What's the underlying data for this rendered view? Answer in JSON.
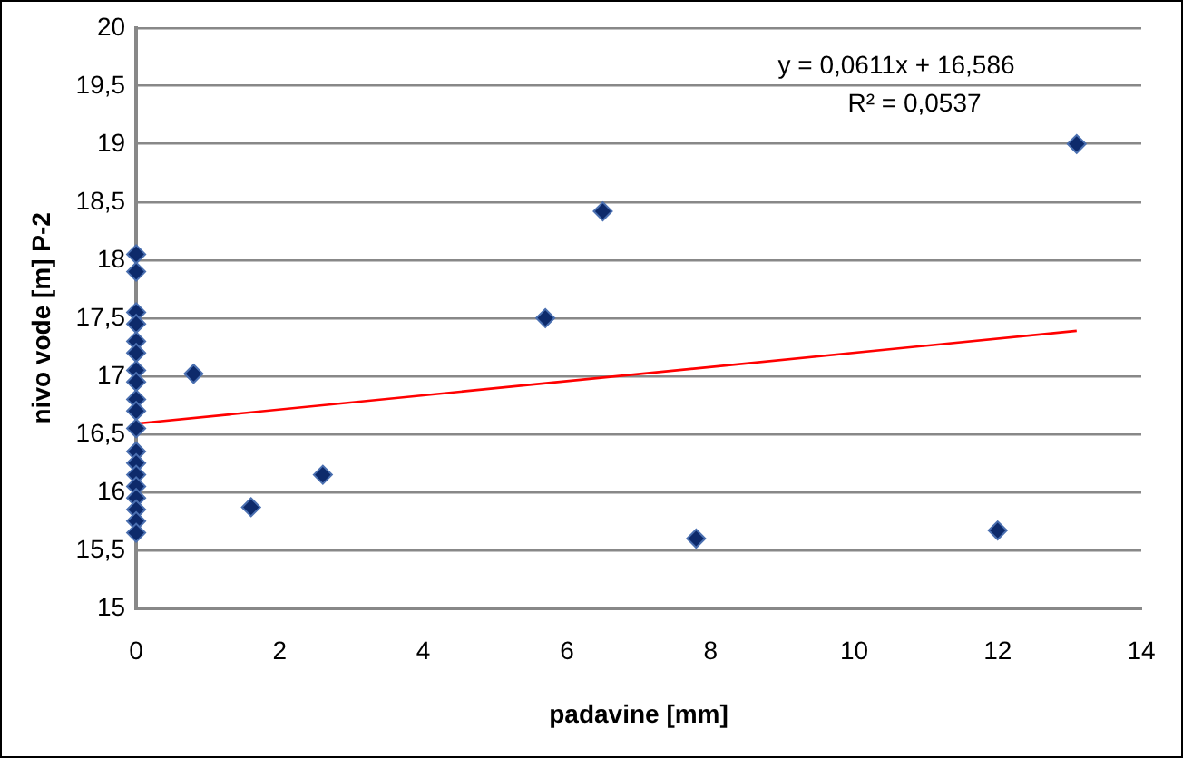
{
  "chart_data": {
    "type": "scatter",
    "xlabel": "padavine [mm]",
    "ylabel": "nivo vode [m] P-2",
    "xlim": [
      0,
      14
    ],
    "xticks": [
      0,
      2,
      4,
      6,
      8,
      10,
      12,
      14
    ],
    "ylim": [
      15,
      20
    ],
    "yticks": [
      15,
      {
        "value": 15.5,
        "label": "15,5"
      },
      16,
      {
        "value": 16.5,
        "label": "16,5"
      },
      17,
      {
        "value": 17.5,
        "label": "17,5"
      },
      18,
      {
        "value": 18.5,
        "label": "18,5"
      },
      19,
      {
        "value": 19.5,
        "label": "19,5"
      },
      20
    ],
    "grid": "y",
    "legend": false,
    "annotations": [
      "y = 0,0611x + 16,586",
      "R² = 0,0537"
    ],
    "series": [
      {
        "marker": "diamond",
        "color": "#0d2a6b",
        "x": [
          0,
          0,
          0,
          0,
          0,
          0,
          0,
          0,
          0,
          0,
          0,
          0,
          0,
          0,
          0,
          0,
          0,
          0,
          0,
          0.8,
          1.6,
          2.6,
          5.7,
          6.5,
          7.8,
          12,
          13.1
        ],
        "values": [
          18.05,
          17.9,
          17.55,
          17.45,
          17.3,
          17.2,
          17.05,
          16.95,
          16.8,
          16.7,
          16.55,
          16.35,
          16.25,
          16.15,
          16.05,
          15.95,
          15.85,
          15.75,
          15.65,
          17.02,
          15.87,
          16.15,
          17.5,
          18.42,
          15.6,
          15.67,
          19.0
        ]
      },
      {
        "type": "line",
        "color": "#ff0000",
        "x": [
          0,
          13.1
        ],
        "values": [
          16.59,
          17.39
        ]
      }
    ]
  }
}
